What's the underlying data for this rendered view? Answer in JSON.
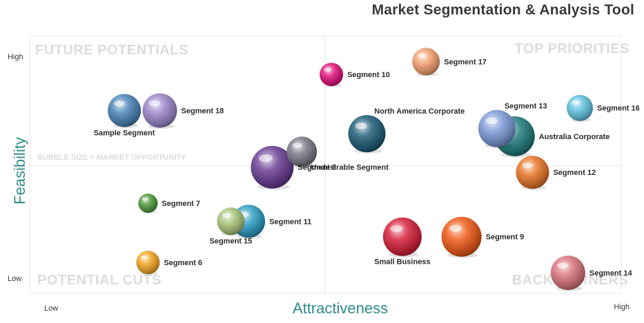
{
  "title": "Market Segmentation & Analysis Tool",
  "chart_data": {
    "type": "scatter",
    "title": "Market Segmentation & Analysis Tool",
    "xlabel": "Attractiveness",
    "ylabel": "Feasibility",
    "x_ticks": {
      "low": "Low",
      "high": "High"
    },
    "y_ticks": {
      "low": "Low",
      "high": "High"
    },
    "xlim": [
      0,
      100
    ],
    "ylim": [
      0,
      100
    ],
    "quadrants": {
      "top_left": "FUTURE POTENTIALS",
      "top_right": "TOP PRIORITIES",
      "bottom_left": "POTENTIAL CUTS",
      "bottom_right": "BACK BURNERS"
    },
    "size_note": "BUBBLE SIZE = MARKET OPPORTUNITY",
    "points": [
      {
        "name": "Segment 10",
        "x": 51,
        "y": 85,
        "size": 17,
        "color": "#e0137a",
        "label_pos": "right"
      },
      {
        "name": "Segment 17",
        "x": 67,
        "y": 90,
        "size": 20,
        "color": "#f2a070",
        "label_pos": "right"
      },
      {
        "name": "Segment 18",
        "x": 22,
        "y": 71,
        "size": 25,
        "color": "#9d86c9",
        "label_pos": "right"
      },
      {
        "name": "Sample Segment",
        "x": 16,
        "y": 71,
        "size": 24,
        "color": "#4a84b8",
        "label_pos": "below"
      },
      {
        "name": "North America Corporate",
        "x": 57,
        "y": 62,
        "size": 27,
        "color": "#1f5e78",
        "label_pos": "above-right"
      },
      {
        "name": "Australia Corporate",
        "x": 82,
        "y": 61,
        "size": 29,
        "color": "#237e7e",
        "label_pos": "right"
      },
      {
        "name": "Segment 13",
        "x": 79,
        "y": 64,
        "size": 27,
        "color": "#7b9bd6",
        "label_pos": "above-right"
      },
      {
        "name": "Segment 16",
        "x": 93,
        "y": 72,
        "size": 19,
        "color": "#63c3e0",
        "label_pos": "right"
      },
      {
        "name": "Undesirable Segment",
        "x": 46,
        "y": 55,
        "size": 22,
        "color": "#7a7a88",
        "label_pos": "below-right"
      },
      {
        "name": "Segment 8",
        "x": 41,
        "y": 49,
        "size": 31,
        "color": "#6a3f95",
        "label_pos": "right"
      },
      {
        "name": "Segment 12",
        "x": 85,
        "y": 47,
        "size": 24,
        "color": "#e8772a",
        "label_pos": "right"
      },
      {
        "name": "Segment 7",
        "x": 20,
        "y": 35,
        "size": 14,
        "color": "#4f9a3d",
        "label_pos": "right"
      },
      {
        "name": "Segment 11",
        "x": 37,
        "y": 28,
        "size": 24,
        "color": "#2d9fc4",
        "label_pos": "right"
      },
      {
        "name": "Segment 15",
        "x": 34,
        "y": 28,
        "size": 20,
        "color": "#a9c47a",
        "label_pos": "below"
      },
      {
        "name": "Small Business",
        "x": 63,
        "y": 22,
        "size": 28,
        "color": "#d6213a",
        "label_pos": "below"
      },
      {
        "name": "Segment 9",
        "x": 73,
        "y": 22,
        "size": 29,
        "color": "#ee5a18",
        "label_pos": "right"
      },
      {
        "name": "Segment 6",
        "x": 20,
        "y": 12,
        "size": 17,
        "color": "#f0a623",
        "label_pos": "right"
      },
      {
        "name": "Segment 14",
        "x": 91,
        "y": 8,
        "size": 25,
        "color": "#d9757c",
        "label_pos": "right"
      }
    ]
  }
}
